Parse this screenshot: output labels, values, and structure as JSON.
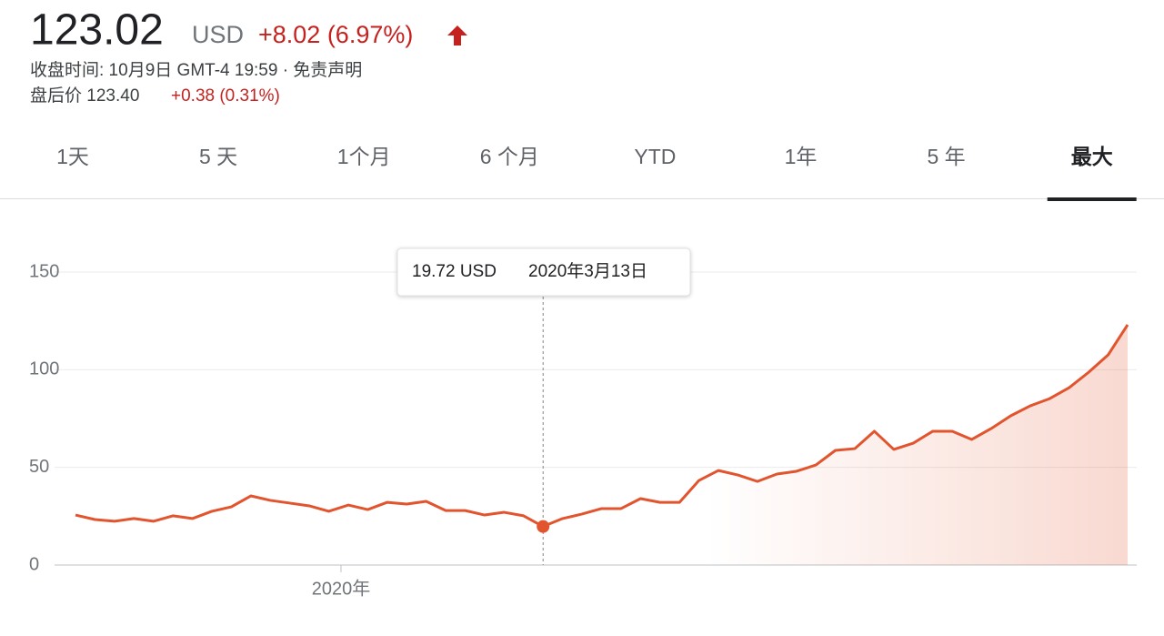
{
  "header": {
    "price": "123.02",
    "currency": "USD",
    "change": "+8.02 (6.97%)",
    "close_info": "收盘时间: 10月9日 GMT-4 19:59 · 免责声明",
    "after_hours_label": "盘后价 123.40",
    "after_hours_change": "+0.38 (0.31%)"
  },
  "tabs": {
    "items": [
      "1天",
      "5 天",
      "1个月",
      "6 个月",
      "YTD",
      "1年",
      "5 年",
      "最大"
    ],
    "active": 7
  },
  "chart_data": {
    "type": "line",
    "categories": [
      null,
      null,
      null,
      null,
      null,
      null,
      null,
      null,
      null,
      null,
      null,
      null,
      null,
      null,
      "2020年",
      null,
      null,
      null,
      null,
      null,
      null,
      null,
      null,
      null,
      null,
      null,
      null,
      null,
      null,
      null,
      null,
      null,
      null,
      null,
      null,
      null,
      null,
      null,
      null,
      null,
      null,
      null,
      null,
      null,
      null,
      null,
      null,
      null,
      null,
      null,
      null,
      null,
      null,
      null,
      null
    ],
    "series": [
      {
        "name": "USD",
        "color": "#e2542e",
        "values": [
          25.6,
          23.3,
          22.4,
          23.8,
          22.4,
          25.2,
          23.8,
          27.5,
          29.8,
          35.4,
          33.1,
          31.7,
          30.3,
          27.5,
          30.7,
          28.4,
          32.1,
          31.2,
          32.6,
          27.9,
          27.9,
          25.6,
          27.0,
          25.2,
          19.72,
          23.8,
          26.1,
          28.9,
          28.9,
          34.0,
          32.1,
          32.1,
          43.3,
          48.4,
          46.1,
          42.8,
          46.6,
          48.0,
          51.2,
          58.7,
          59.6,
          68.5,
          59.2,
          62.4,
          68.5,
          68.5,
          64.3,
          69.9,
          76.4,
          81.5,
          85.2,
          90.8,
          98.7,
          107.6,
          123.02
        ]
      }
    ],
    "ylim": [
      0,
      150
    ],
    "yticks": [
      0,
      50,
      100,
      150
    ],
    "grid": true,
    "tooltip": {
      "label": "19.72 USD",
      "date": "2020年3月13日"
    }
  }
}
